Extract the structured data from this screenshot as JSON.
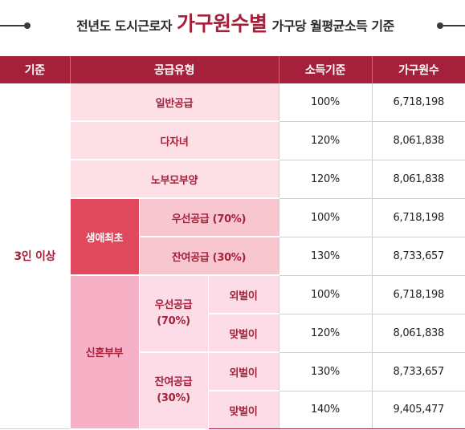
{
  "title": {
    "prefix": "전년도 도시근로자",
    "highlight": "가구원수별",
    "suffix": "가구당 월평균소득 기준"
  },
  "headers": {
    "criteria": "기준",
    "supply_type": "공급유형",
    "income_criteria": "소득기준",
    "household_size": "가구원수"
  },
  "rows": {
    "group_label": "3인 이상",
    "general": {
      "label": "일반공급",
      "income": "100%",
      "amount": "6,718,198"
    },
    "multichild": {
      "label": "다자녀",
      "income": "120%",
      "amount": "8,061,838"
    },
    "elderly": {
      "label": "노부모부양",
      "income": "120%",
      "amount": "8,061,838"
    },
    "first_life": {
      "label": "생애최초",
      "priority": {
        "label": "우선공급 (70%)",
        "income": "100%",
        "amount": "6,718,198"
      },
      "remaining": {
        "label": "잔여공급 (30%)",
        "income": "130%",
        "amount": "8,733,657"
      }
    },
    "newlywed": {
      "label": "신혼부부",
      "priority": {
        "label_line1": "우선공급",
        "label_line2": "(70%)",
        "single": {
          "label": "외벌이",
          "income": "100%",
          "amount": "6,718,198"
        },
        "dual": {
          "label": "맞벌이",
          "income": "120%",
          "amount": "8,061,838"
        }
      },
      "remaining": {
        "label_line1": "잔여공급",
        "label_line2": "(30%)",
        "single": {
          "label": "외벌이",
          "income": "130%",
          "amount": "8,733,657"
        },
        "dual": {
          "label": "맞벌이",
          "income": "140%",
          "amount": "9,405,477"
        }
      }
    }
  }
}
